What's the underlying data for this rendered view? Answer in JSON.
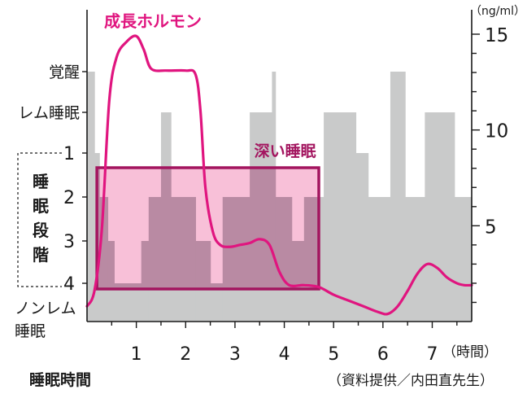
{
  "chart_data": {
    "type": "area",
    "xlabel": "睡眠時間",
    "x_unit": "（時間）",
    "xlim": [
      0,
      7.8
    ],
    "x_ticks": [
      1,
      2,
      3,
      4,
      5,
      6,
      7
    ],
    "left_axis": {
      "labels": [
        {
          "key": "wake",
          "text": "覚醒"
        },
        {
          "key": "rem",
          "text": "レム睡眠"
        },
        {
          "key": "s1",
          "text": "1"
        },
        {
          "key": "s2",
          "text": "2"
        },
        {
          "key": "s3",
          "text": "3"
        },
        {
          "key": "s4",
          "text": "4"
        },
        {
          "key": "nrem",
          "text": "ノンレム\n睡眠"
        }
      ],
      "group_label": "睡眠段階"
    },
    "right_axis": {
      "unit": "（ng/ml）",
      "ylim": [
        0,
        16
      ],
      "ticks": [
        5,
        10,
        15
      ]
    },
    "sleep_stage_steps": [
      {
        "x0": 0.0,
        "x1": 0.15,
        "stage": "wake"
      },
      {
        "x0": 0.15,
        "x1": 0.25,
        "stage": "s1"
      },
      {
        "x0": 0.25,
        "x1": 0.42,
        "stage": "s2"
      },
      {
        "x0": 0.42,
        "x1": 0.55,
        "stage": "s3"
      },
      {
        "x0": 0.55,
        "x1": 1.1,
        "stage": "s4"
      },
      {
        "x0": 1.1,
        "x1": 1.25,
        "stage": "s3"
      },
      {
        "x0": 1.25,
        "x1": 1.5,
        "stage": "s2"
      },
      {
        "x0": 1.5,
        "x1": 1.7,
        "stage": "rem"
      },
      {
        "x0": 1.7,
        "x1": 2.2,
        "stage": "s2"
      },
      {
        "x0": 2.2,
        "x1": 2.5,
        "stage": "s3"
      },
      {
        "x0": 2.5,
        "x1": 2.75,
        "stage": "s4"
      },
      {
        "x0": 2.75,
        "x1": 3.3,
        "stage": "s2"
      },
      {
        "x0": 3.3,
        "x1": 3.75,
        "stage": "rem"
      },
      {
        "x0": 3.75,
        "x1": 3.82,
        "stage": "wake"
      },
      {
        "x0": 3.82,
        "x1": 4.15,
        "stage": "s2"
      },
      {
        "x0": 4.15,
        "x1": 4.4,
        "stage": "s3"
      },
      {
        "x0": 4.4,
        "x1": 4.8,
        "stage": "s2"
      },
      {
        "x0": 4.8,
        "x1": 5.45,
        "stage": "rem"
      },
      {
        "x0": 5.45,
        "x1": 5.7,
        "stage": "s1"
      },
      {
        "x0": 5.7,
        "x1": 6.15,
        "stage": "s2"
      },
      {
        "x0": 6.15,
        "x1": 6.45,
        "stage": "wake"
      },
      {
        "x0": 6.45,
        "x1": 6.85,
        "stage": "s2"
      },
      {
        "x0": 6.85,
        "x1": 7.45,
        "stage": "rem"
      },
      {
        "x0": 7.45,
        "x1": 7.8,
        "stage": "s2"
      }
    ],
    "growth_hormone": {
      "name": "成長ホルモン",
      "color": "#e0157f",
      "points": [
        [
          0.0,
          0.8
        ],
        [
          0.15,
          1.6
        ],
        [
          0.3,
          4.8
        ],
        [
          0.45,
          11.5
        ],
        [
          0.6,
          13.8
        ],
        [
          0.8,
          14.6
        ],
        [
          1.0,
          14.9
        ],
        [
          1.15,
          14.2
        ],
        [
          1.3,
          13.2
        ],
        [
          1.6,
          13.1
        ],
        [
          2.0,
          13.1
        ],
        [
          2.2,
          12.9
        ],
        [
          2.3,
          11.0
        ],
        [
          2.4,
          7.0
        ],
        [
          2.55,
          4.7
        ],
        [
          2.7,
          4.0
        ],
        [
          2.9,
          3.9
        ],
        [
          3.1,
          4.0
        ],
        [
          3.3,
          4.1
        ],
        [
          3.5,
          4.3
        ],
        [
          3.7,
          4.0
        ],
        [
          3.9,
          2.6
        ],
        [
          4.1,
          1.9
        ],
        [
          4.4,
          1.9
        ],
        [
          4.7,
          1.8
        ],
        [
          5.0,
          1.4
        ],
        [
          5.3,
          1.1
        ],
        [
          5.6,
          0.8
        ],
        [
          5.9,
          0.5
        ],
        [
          6.1,
          0.4
        ],
        [
          6.3,
          0.8
        ],
        [
          6.5,
          1.6
        ],
        [
          6.7,
          2.5
        ],
        [
          6.9,
          3.0
        ],
        [
          7.1,
          2.8
        ],
        [
          7.3,
          2.3
        ],
        [
          7.5,
          2.0
        ],
        [
          7.65,
          1.9
        ],
        [
          7.8,
          1.9
        ]
      ]
    },
    "deep_sleep_box": {
      "label": "深い睡眠",
      "x0": 0.2,
      "x1": 4.7,
      "from_stage": "s1",
      "to_stage": "s4"
    },
    "source_note": "（資料提供／内田直先生）"
  },
  "colors": {
    "hypnogram_fill": "#c9caca",
    "deep_fill": "#f7b9d4",
    "deep_border": "#a3155f",
    "hormone_line": "#e0157f",
    "axis": "#1a1a1a"
  }
}
